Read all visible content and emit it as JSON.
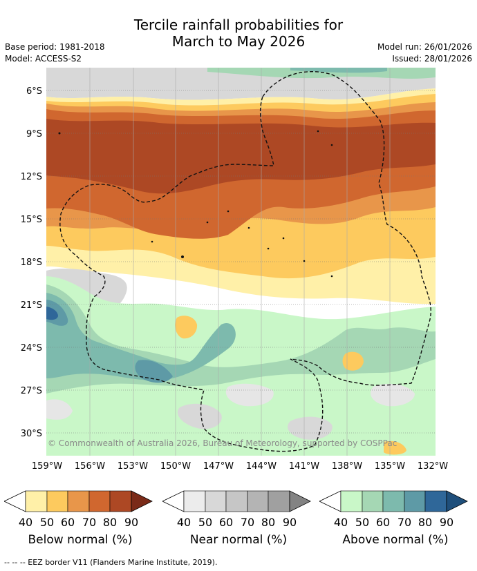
{
  "header": {
    "title_line1": "Tercile rainfall probabilities for",
    "title_line2": "March to May 2026",
    "base_period": "Base period: 1981-2018",
    "model": "Model: ACCESS-S2",
    "model_run": "Model run: 26/01/2026",
    "issued": "Issued: 28/01/2026"
  },
  "map": {
    "lat_labels": [
      "6°S",
      "9°S",
      "12°S",
      "15°S",
      "18°S",
      "21°S",
      "24°S",
      "27°S",
      "30°S"
    ],
    "lon_labels": [
      "159°W",
      "156°W",
      "153°W",
      "150°W",
      "147°W",
      "144°W",
      "141°W",
      "138°W",
      "135°W",
      "132°W"
    ],
    "copyright": "© Commonwealth of Australia 2026, Bureau of Meteorology, supported by COSPPac"
  },
  "legends": [
    {
      "label": "Below normal (%)",
      "ticks": [
        "40",
        "50",
        "60",
        "70",
        "80",
        "90"
      ],
      "colors": [
        "#fff0a8",
        "#fdca5e",
        "#e8964a",
        "#d0672f",
        "#ad4824",
        "#7a2a18"
      ]
    },
    {
      "label": "Near normal (%)",
      "ticks": [
        "40",
        "50",
        "60",
        "70",
        "80",
        "90"
      ],
      "colors": [
        "#ececec",
        "#d8d8d8",
        "#c6c6c6",
        "#b4b4b4",
        "#a0a0a0",
        "#838383"
      ]
    },
    {
      "label": "Above normal (%)",
      "ticks": [
        "40",
        "50",
        "60",
        "70",
        "80",
        "90"
      ],
      "colors": [
        "#c9f7c8",
        "#a5d7b4",
        "#7dbaad",
        "#5e9aa6",
        "#2f6799",
        "#1f4f7b"
      ]
    }
  ],
  "footnote": "--  --  -- EEZ border V11 (Flanders Marine Institute, 2019)."
}
